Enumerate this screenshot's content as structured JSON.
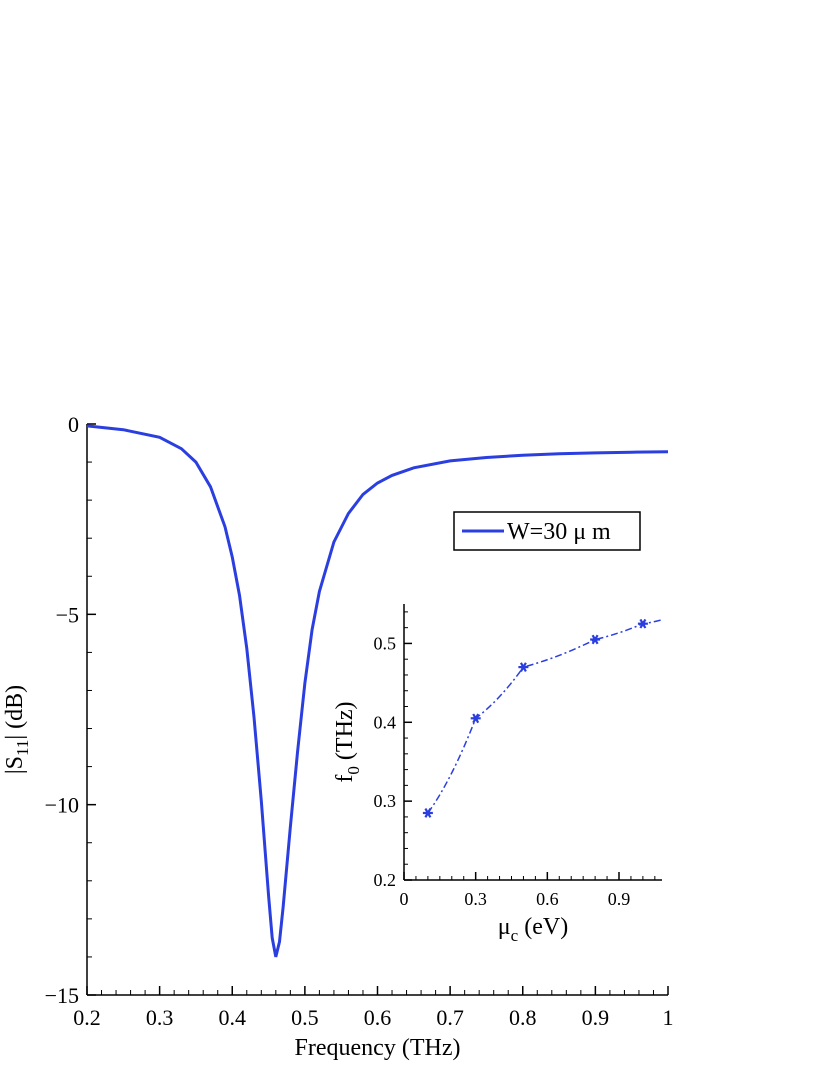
{
  "chart_data": [
    {
      "type": "line",
      "title": "",
      "xlabel": "Frequency (THz)",
      "ylabel_parts": {
        "prefix": "|S",
        "sub": "11",
        "suffix": "| (dB)"
      },
      "xlim": [
        0.2,
        1.0
      ],
      "ylim": [
        -15,
        0
      ],
      "xticks": [
        0.2,
        0.3,
        0.4,
        0.5,
        0.6,
        0.7,
        0.8,
        0.9,
        1.0
      ],
      "xtick_labels": [
        "0.2",
        "0.3",
        "0.4",
        "0.5",
        "0.6",
        "0.7",
        "0.8",
        "0.9",
        "1"
      ],
      "yticks": [
        0,
        -5,
        -10,
        -15
      ],
      "ytick_labels": [
        "0",
        "−5",
        "−10",
        "−15"
      ],
      "grid": false,
      "legend": {
        "placement": "right",
        "entries": [
          "W=30 μ m"
        ]
      },
      "series": [
        {
          "name": "W=30 μ m",
          "color": "#2b3fe0",
          "x": [
            0.2,
            0.25,
            0.3,
            0.33,
            0.35,
            0.37,
            0.39,
            0.4,
            0.41,
            0.42,
            0.43,
            0.44,
            0.45,
            0.455,
            0.46,
            0.465,
            0.47,
            0.48,
            0.49,
            0.5,
            0.51,
            0.52,
            0.54,
            0.56,
            0.58,
            0.6,
            0.62,
            0.65,
            0.7,
            0.75,
            0.8,
            0.85,
            0.9,
            0.95,
            1.0
          ],
          "y": [
            -0.05,
            -0.15,
            -0.35,
            -0.65,
            -1.0,
            -1.65,
            -2.7,
            -3.5,
            -4.5,
            -5.9,
            -7.7,
            -9.9,
            -12.4,
            -13.5,
            -14.0,
            -13.6,
            -12.7,
            -10.6,
            -8.6,
            -6.8,
            -5.4,
            -4.4,
            -3.1,
            -2.35,
            -1.85,
            -1.55,
            -1.35,
            -1.15,
            -0.97,
            -0.88,
            -0.82,
            -0.78,
            -0.76,
            -0.74,
            -0.73
          ]
        }
      ]
    },
    {
      "type": "line",
      "title": "",
      "xlabel_parts": {
        "prefix": "μ",
        "sub": "c",
        "suffix": " (eV)"
      },
      "ylabel_parts": {
        "prefix": "f",
        "sub": "0",
        "suffix": " (THz)"
      },
      "xlim": [
        0,
        1.08
      ],
      "ylim": [
        0.2,
        0.55
      ],
      "xticks": [
        0,
        0.3,
        0.6,
        0.9
      ],
      "xtick_labels": [
        "0",
        "0.3",
        "0.6",
        "0.9"
      ],
      "yticks": [
        0.2,
        0.3,
        0.4,
        0.5
      ],
      "ytick_labels": [
        "0.2",
        "0.3",
        "0.4",
        "0.5"
      ],
      "grid": false,
      "series": [
        {
          "color": "#2b3fe0",
          "x": [
            0.1,
            0.3,
            0.5,
            0.8,
            1.0
          ],
          "y": [
            0.285,
            0.405,
            0.47,
            0.505,
            0.525
          ]
        }
      ]
    }
  ]
}
